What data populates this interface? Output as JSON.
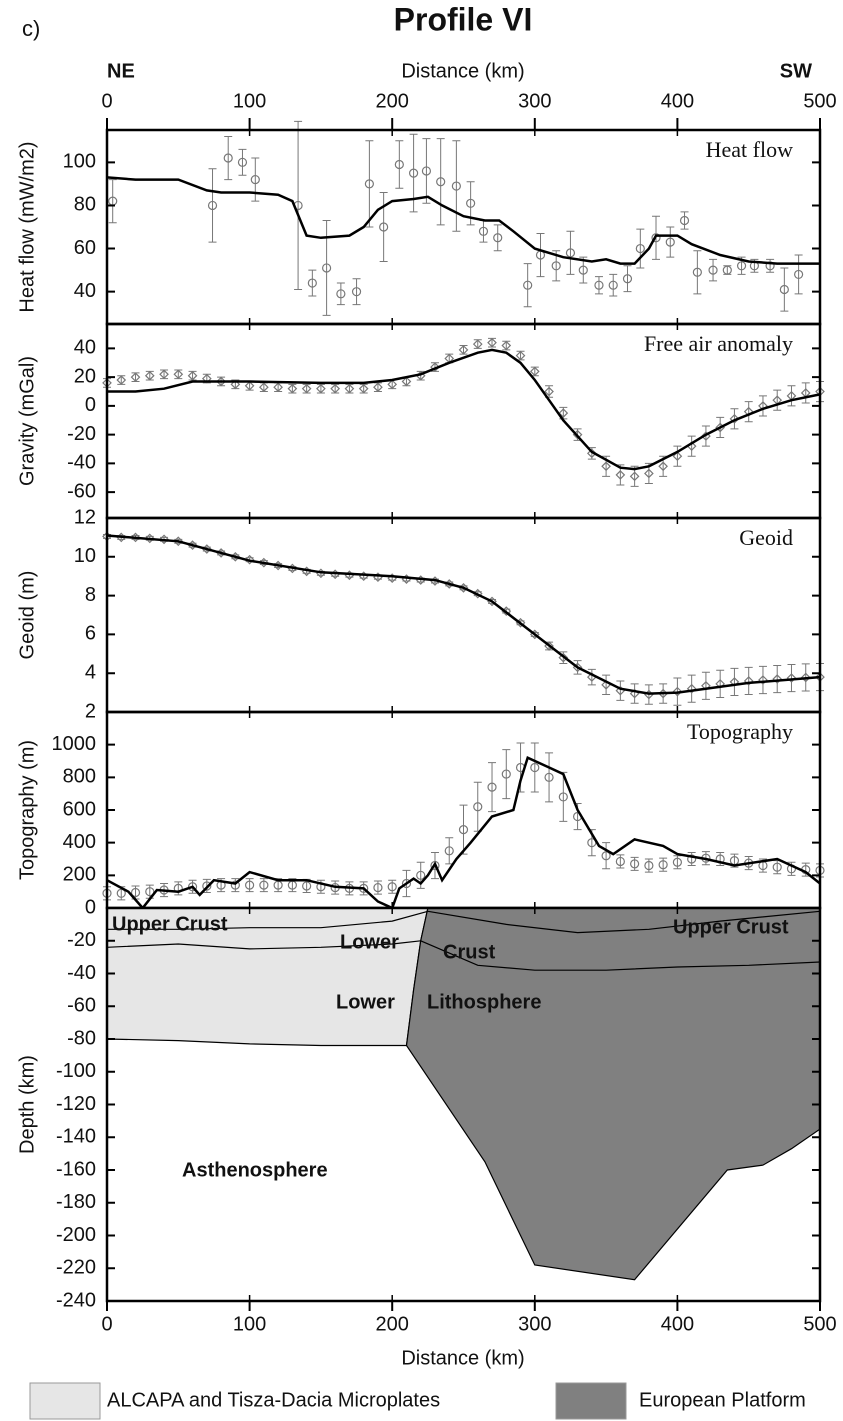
{
  "figure": {
    "label": "c)",
    "title": "Profile VI",
    "left_end": "NE",
    "right_end": "SW",
    "xlabel": "Distance (km)",
    "xlim": [
      0,
      500
    ],
    "xticks": [
      0,
      100,
      200,
      300,
      400,
      500
    ]
  },
  "chart_data": [
    {
      "type": "errorbar",
      "title": "Heat flow",
      "ylabel": "Heat flow (mW/m2)",
      "ylim": [
        25,
        115
      ],
      "yticks": [
        40,
        60,
        80,
        100
      ],
      "marker": "circle",
      "observed": {
        "color": "#777777",
        "x": [
          4,
          74,
          85,
          95,
          104,
          134,
          144,
          154,
          164,
          175,
          184,
          194,
          205,
          215,
          224,
          234,
          245,
          255,
          264,
          274,
          295,
          304,
          315,
          325,
          334,
          345,
          355,
          365,
          374,
          385,
          395,
          405,
          414,
          425,
          435,
          445,
          454,
          465,
          475,
          485
        ],
        "values": [
          82,
          80,
          102,
          100,
          92,
          80,
          44,
          51,
          39,
          40,
          90,
          70,
          99,
          95,
          96,
          91,
          89,
          81,
          68,
          65,
          43,
          57,
          52,
          58,
          50,
          43,
          43,
          46,
          60,
          65,
          63,
          73,
          49,
          50,
          50,
          52,
          52,
          52,
          41,
          48
        ],
        "errors": [
          10,
          17,
          10,
          6,
          10,
          39,
          6,
          22,
          5,
          6,
          20,
          16,
          11,
          18,
          15,
          20,
          21,
          10,
          5,
          6,
          10,
          10,
          7,
          10,
          6,
          4,
          5,
          6,
          9,
          10,
          7,
          4,
          10,
          5,
          2,
          4,
          3,
          3,
          10,
          9
        ]
      },
      "model": {
        "color": "#000000",
        "x": [
          0,
          20,
          50,
          70,
          80,
          100,
          120,
          130,
          140,
          150,
          170,
          180,
          190,
          200,
          215,
          225,
          235,
          250,
          265,
          275,
          285,
          300,
          320,
          340,
          350,
          360,
          370,
          380,
          385,
          400,
          410,
          430,
          450,
          470,
          500
        ],
        "values": [
          93,
          92,
          92,
          87,
          86,
          86,
          85,
          82,
          66,
          65,
          66,
          70,
          78,
          82,
          83,
          84,
          80,
          75,
          73,
          73,
          68,
          60,
          56,
          54,
          55,
          53,
          53,
          60,
          66,
          66,
          62,
          57,
          54,
          53,
          53
        ]
      }
    },
    {
      "type": "errorbar",
      "title": "Free air anomaly",
      "ylabel": "Gravity (mGal)",
      "ylim": [
        -78,
        57
      ],
      "yticks": [
        -60,
        -40,
        -20,
        0,
        20,
        40
      ],
      "marker": "diamond",
      "observed": {
        "color": "#777777",
        "x": [
          0,
          10,
          20,
          30,
          40,
          50,
          60,
          70,
          80,
          90,
          100,
          110,
          120,
          130,
          140,
          150,
          160,
          170,
          180,
          190,
          200,
          210,
          220,
          230,
          240,
          250,
          260,
          270,
          280,
          290,
          300,
          310,
          320,
          330,
          340,
          350,
          360,
          370,
          380,
          390,
          400,
          410,
          420,
          430,
          440,
          450,
          460,
          470,
          480,
          490,
          500
        ],
        "values": [
          16,
          18,
          20,
          21,
          22,
          22,
          21,
          19,
          17,
          15,
          14,
          13,
          13,
          12,
          12,
          12,
          12,
          12,
          12,
          13,
          15,
          17,
          21,
          27,
          33,
          39,
          43,
          44,
          42,
          35,
          24,
          10,
          -5,
          -20,
          -33,
          -42,
          -48,
          -49,
          -47,
          -42,
          -35,
          -28,
          -21,
          -15,
          -9,
          -4,
          0,
          4,
          7,
          9,
          10
        ],
        "errors": [
          3,
          3,
          3,
          3,
          3,
          3,
          3,
          3,
          3,
          3,
          3,
          3,
          3,
          3,
          3,
          3,
          3,
          3,
          3,
          3,
          3,
          3,
          3,
          3,
          3,
          3,
          3,
          3,
          3,
          3,
          3,
          4,
          4,
          4,
          4,
          7,
          7,
          7,
          7,
          7,
          7,
          7,
          7,
          7,
          7,
          7,
          7,
          7,
          7,
          7,
          7
        ]
      },
      "model": {
        "color": "#000000",
        "x": [
          0,
          20,
          40,
          60,
          80,
          100,
          150,
          180,
          200,
          220,
          240,
          260,
          270,
          280,
          290,
          300,
          310,
          320,
          340,
          360,
          370,
          380,
          400,
          420,
          440,
          460,
          480,
          500
        ],
        "values": [
          10,
          10,
          12,
          17,
          17,
          17,
          16,
          16,
          18,
          22,
          30,
          37,
          39,
          37,
          30,
          18,
          4,
          -10,
          -32,
          -43,
          -44,
          -42,
          -32,
          -20,
          -10,
          -2,
          4,
          8
        ]
      }
    },
    {
      "type": "errorbar",
      "title": "Geoid",
      "ylabel": "Geoid (m)",
      "ylim": [
        2,
        12
      ],
      "yticks": [
        2,
        4,
        6,
        8,
        10,
        12
      ],
      "marker": "diamond",
      "observed": {
        "color": "#777777",
        "x": [
          0,
          10,
          20,
          30,
          40,
          50,
          60,
          70,
          80,
          90,
          100,
          110,
          120,
          130,
          140,
          150,
          160,
          170,
          180,
          190,
          200,
          210,
          220,
          230,
          240,
          250,
          260,
          270,
          280,
          290,
          300,
          310,
          320,
          330,
          340,
          350,
          360,
          370,
          380,
          390,
          400,
          410,
          420,
          430,
          440,
          450,
          460,
          470,
          480,
          490,
          500
        ],
        "values": [
          11.05,
          11,
          11,
          10.95,
          10.9,
          10.8,
          10.6,
          10.4,
          10.2,
          10,
          9.85,
          9.7,
          9.55,
          9.4,
          9.25,
          9.15,
          9.1,
          9.05,
          9,
          8.95,
          8.9,
          8.85,
          8.8,
          8.75,
          8.6,
          8.4,
          8.1,
          7.7,
          7.2,
          6.6,
          6,
          5.4,
          4.8,
          4.3,
          3.8,
          3.4,
          3.1,
          2.95,
          2.9,
          2.95,
          3.05,
          3.2,
          3.35,
          3.45,
          3.55,
          3.6,
          3.65,
          3.7,
          3.75,
          3.78,
          3.8
        ],
        "errors": [
          0.1,
          0.1,
          0.1,
          0.1,
          0.1,
          0.1,
          0.1,
          0.1,
          0.1,
          0.1,
          0.1,
          0.1,
          0.1,
          0.1,
          0.1,
          0.1,
          0.1,
          0.1,
          0.1,
          0.1,
          0.1,
          0.1,
          0.1,
          0.1,
          0.1,
          0.1,
          0.1,
          0.1,
          0.1,
          0.1,
          0.1,
          0.2,
          0.3,
          0.35,
          0.4,
          0.5,
          0.5,
          0.5,
          0.5,
          0.5,
          0.7,
          0.7,
          0.7,
          0.7,
          0.7,
          0.7,
          0.7,
          0.7,
          0.7,
          0.7,
          0.7
        ]
      },
      "model": {
        "color": "#000000",
        "x": [
          0,
          50,
          100,
          150,
          200,
          230,
          250,
          270,
          300,
          330,
          360,
          380,
          400,
          450,
          500
        ],
        "values": [
          11.1,
          10.8,
          9.8,
          9.2,
          9,
          8.8,
          8.4,
          7.7,
          6,
          4.3,
          3.2,
          2.95,
          3,
          3.5,
          3.8
        ]
      }
    },
    {
      "type": "errorbar",
      "title": "Topography",
      "ylabel": "Topography (m)",
      "ylim": [
        0,
        1200
      ],
      "yticks": [
        200,
        400,
        600,
        800,
        1000
      ],
      "marker": "circle",
      "observed": {
        "color": "#777777",
        "x": [
          0,
          10,
          20,
          30,
          40,
          50,
          60,
          70,
          80,
          90,
          100,
          110,
          120,
          130,
          140,
          150,
          160,
          170,
          180,
          190,
          200,
          210,
          220,
          230,
          240,
          250,
          260,
          270,
          280,
          290,
          300,
          310,
          320,
          330,
          340,
          350,
          360,
          370,
          380,
          390,
          400,
          410,
          420,
          430,
          440,
          450,
          460,
          470,
          480,
          490,
          500
        ],
        "values": [
          90,
          90,
          95,
          100,
          110,
          120,
          130,
          135,
          140,
          140,
          140,
          140,
          140,
          140,
          135,
          130,
          125,
          120,
          120,
          125,
          130,
          150,
          200,
          260,
          350,
          480,
          620,
          740,
          820,
          860,
          860,
          800,
          680,
          560,
          400,
          320,
          285,
          270,
          260,
          265,
          280,
          300,
          305,
          300,
          290,
          275,
          260,
          250,
          240,
          235,
          230
        ],
        "errors": [
          40,
          40,
          40,
          40,
          40,
          40,
          40,
          40,
          40,
          40,
          40,
          40,
          40,
          40,
          40,
          40,
          40,
          40,
          40,
          40,
          40,
          80,
          80,
          80,
          80,
          150,
          150,
          150,
          150,
          150,
          150,
          150,
          150,
          80,
          80,
          80,
          40,
          40,
          40,
          40,
          40,
          40,
          40,
          40,
          40,
          40,
          40,
          40,
          40,
          40,
          40
        ]
      },
      "model": {
        "color": "#000000",
        "x": [
          0,
          15,
          25,
          35,
          50,
          60,
          65,
          75,
          90,
          100,
          120,
          140,
          160,
          180,
          190,
          200,
          205,
          215,
          220,
          225,
          230,
          235,
          245,
          255,
          270,
          285,
          290,
          295,
          310,
          320,
          330,
          345,
          355,
          370,
          390,
          400,
          420,
          440,
          470,
          490,
          500
        ],
        "values": [
          170,
          100,
          0,
          110,
          100,
          130,
          80,
          170,
          150,
          220,
          170,
          170,
          130,
          120,
          40,
          0,
          120,
          180,
          150,
          200,
          270,
          170,
          300,
          400,
          560,
          600,
          780,
          920,
          860,
          820,
          600,
          380,
          330,
          420,
          380,
          330,
          300,
          260,
          300,
          220,
          150
        ]
      }
    },
    {
      "type": "area",
      "ylabel": "Depth (km)",
      "ylim": [
        -240,
        0
      ],
      "yticks": [
        0,
        -20,
        -40,
        -60,
        -80,
        -100,
        -120,
        -140,
        -160,
        -180,
        -200,
        -220,
        -240
      ],
      "polygons": [
        {
          "name": "ALCAPA and Tisza-Dacia Microplates",
          "color": "#e6e6e6",
          "x": [
            0,
            225,
            220,
            215,
            210,
            150,
            100,
            50,
            0
          ],
          "y": [
            0,
            0,
            -20,
            -50,
            -84,
            -84,
            -83,
            -81,
            -80
          ]
        },
        {
          "name": "European Platform",
          "color": "#808080",
          "x": [
            225,
            500,
            500,
            480,
            460,
            435,
            370,
            300,
            265,
            210,
            215,
            220
          ],
          "y": [
            0,
            0,
            -135,
            -147,
            -157,
            -160,
            -227,
            -218,
            -155,
            -84,
            -50,
            -20
          ]
        }
      ],
      "boundaries": [
        {
          "x": [
            0,
            50,
            100,
            150,
            200,
            225
          ],
          "y": [
            -13,
            -13,
            -12,
            -12,
            -8,
            -2
          ]
        },
        {
          "x": [
            0,
            50,
            100,
            150,
            200,
            220
          ],
          "y": [
            -24,
            -22,
            -25,
            -24,
            -22,
            -20
          ]
        },
        {
          "x": [
            225,
            280,
            330,
            380,
            430,
            500
          ],
          "y": [
            -2,
            -10,
            -15,
            -13,
            -8,
            -2
          ]
        },
        {
          "x": [
            220,
            260,
            300,
            350,
            400,
            450,
            500
          ],
          "y": [
            -20,
            -35,
            -38,
            -38,
            -36,
            -35,
            -33
          ]
        }
      ],
      "annotations": [
        "Upper Crust",
        "Lower",
        "Crust",
        "Upper Crust",
        "Lower",
        "Lithosphere",
        "Asthenosphere"
      ]
    }
  ]
}
